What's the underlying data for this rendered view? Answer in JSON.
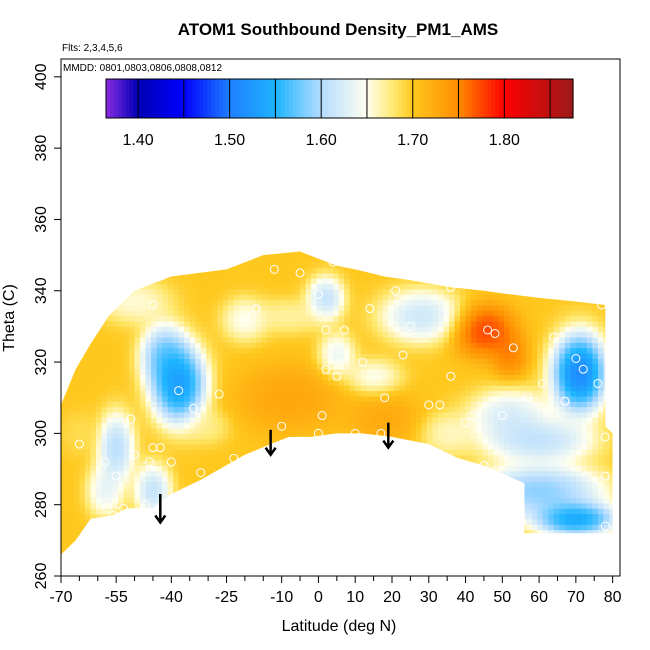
{
  "chart_data": {
    "type": "heatmap",
    "title": "ATOM1 Southbound Density_PM1_AMS",
    "notes": {
      "flights": "Flts: 2,3,4,5,6",
      "dates": "MMDD: 0801,0803,0806,0808,0812"
    },
    "xlabel": "Latitude (deg N)",
    "ylabel": "Theta (C)",
    "xlim": [
      -70,
      82
    ],
    "ylim": [
      260,
      405
    ],
    "x_ticks_major": [
      -70,
      -55,
      -40,
      -25,
      -10,
      0,
      10,
      20,
      30,
      40,
      50,
      60,
      70,
      80
    ],
    "x_tick_labels": [
      "-70",
      "-55",
      "-40",
      "-25",
      "-10",
      "0",
      "10",
      "20",
      "30",
      "40",
      "50",
      "60",
      "70",
      "80"
    ],
    "x_ticks_minor": [
      -65,
      -60,
      -50,
      -45,
      -35,
      -30,
      -20,
      -15,
      -5,
      5,
      15,
      25,
      35,
      45,
      55,
      65,
      75
    ],
    "y_ticks": [
      260,
      280,
      300,
      320,
      340,
      360,
      380,
      400
    ],
    "y_tick_labels": [
      "260",
      "280",
      "300",
      "320",
      "340",
      "360",
      "380",
      "400"
    ],
    "colorbar": {
      "range": [
        1.365,
        1.875
      ],
      "boundaries": [
        1.4,
        1.45,
        1.5,
        1.55,
        1.6,
        1.65,
        1.7,
        1.75,
        1.8,
        1.85
      ],
      "tick_values": [
        1.4,
        1.5,
        1.6,
        1.7,
        1.8
      ],
      "tick_labels": [
        "1.40",
        "1.50",
        "1.60",
        "1.70",
        "1.80"
      ],
      "color_stops": [
        {
          "v": 1.365,
          "c": "#8a2be2"
        },
        {
          "v": 1.4,
          "c": "#0000b4"
        },
        {
          "v": 1.45,
          "c": "#0000ff"
        },
        {
          "v": 1.5,
          "c": "#1f7fff"
        },
        {
          "v": 1.55,
          "c": "#1eb4ff"
        },
        {
          "v": 1.6,
          "c": "#b4dcff"
        },
        {
          "v": 1.65,
          "c": "#fffff0"
        },
        {
          "v": 1.68,
          "c": "#ffe76b"
        },
        {
          "v": 1.7,
          "c": "#ffc81e"
        },
        {
          "v": 1.75,
          "c": "#ff8c00"
        },
        {
          "v": 1.8,
          "c": "#ff0000"
        },
        {
          "v": 1.875,
          "c": "#9b1a1a"
        }
      ]
    },
    "field_base_density": 1.7,
    "field_blobs": [
      {
        "lat": 71,
        "theta": 317,
        "density": 1.4,
        "r_lat": 6,
        "r_theta": 9
      },
      {
        "lat": 45,
        "theta": 329,
        "density": 1.82,
        "r_lat": 7,
        "r_theta": 6
      },
      {
        "lat": 52,
        "theta": 322,
        "density": 1.78,
        "r_lat": 4,
        "r_theta": 5
      },
      {
        "lat": -38,
        "theta": 314,
        "density": 1.43,
        "r_lat": 6,
        "r_theta": 9
      },
      {
        "lat": -42,
        "theta": 322,
        "density": 1.52,
        "r_lat": 5,
        "r_theta": 7
      },
      {
        "lat": 60,
        "theta": 284,
        "density": 1.52,
        "r_lat": 14,
        "r_theta": 6
      },
      {
        "lat": 70,
        "theta": 276,
        "density": 1.45,
        "r_lat": 9,
        "r_theta": 4
      },
      {
        "lat": 52,
        "theta": 305,
        "density": 1.58,
        "r_lat": 9,
        "r_theta": 6
      },
      {
        "lat": 60,
        "theta": 298,
        "density": 1.56,
        "r_lat": 12,
        "r_theta": 5
      },
      {
        "lat": 28,
        "theta": 333,
        "density": 1.57,
        "r_lat": 9,
        "r_theta": 6
      },
      {
        "lat": 15,
        "theta": 316,
        "density": 1.62,
        "r_lat": 6,
        "r_theta": 4
      },
      {
        "lat": 5,
        "theta": 322,
        "density": 1.6,
        "r_lat": 4,
        "r_theta": 5
      },
      {
        "lat": 2,
        "theta": 338,
        "density": 1.56,
        "r_lat": 4,
        "r_theta": 5
      },
      {
        "lat": -8,
        "theta": 333,
        "density": 1.65,
        "r_lat": 8,
        "r_theta": 4
      },
      {
        "lat": -55,
        "theta": 296,
        "density": 1.55,
        "r_lat": 4,
        "r_theta": 8
      },
      {
        "lat": -58,
        "theta": 284,
        "density": 1.6,
        "r_lat": 4,
        "r_theta": 6
      },
      {
        "lat": -45,
        "theta": 284,
        "density": 1.56,
        "r_lat": 4,
        "r_theta": 6
      },
      {
        "lat": -50,
        "theta": 337,
        "density": 1.63,
        "r_lat": 8,
        "r_theta": 5
      },
      {
        "lat": -20,
        "theta": 332,
        "density": 1.62,
        "r_lat": 5,
        "r_theta": 5
      },
      {
        "lat": -8,
        "theta": 310,
        "density": 1.745,
        "r_lat": 12,
        "r_theta": 8
      },
      {
        "lat": 18,
        "theta": 304,
        "density": 1.74,
        "r_lat": 8,
        "r_theta": 6
      },
      {
        "lat": -30,
        "theta": 302,
        "density": 1.66,
        "r_lat": 5,
        "r_theta": 4
      },
      {
        "lat": 35,
        "theta": 300,
        "density": 1.64,
        "r_lat": 6,
        "r_theta": 5
      },
      {
        "lat": -65,
        "theta": 300,
        "density": 1.68,
        "r_lat": 4,
        "r_theta": 5
      }
    ],
    "domain_polygon": [
      [
        -70,
        266
      ],
      [
        -66,
        270
      ],
      [
        -62,
        276
      ],
      [
        -56,
        277
      ],
      [
        -52,
        279
      ],
      [
        -45,
        279
      ],
      [
        -40,
        283
      ],
      [
        -32,
        287
      ],
      [
        -20,
        294
      ],
      [
        -13,
        297
      ],
      [
        -8,
        299
      ],
      [
        -2,
        299
      ],
      [
        5,
        300
      ],
      [
        12,
        300
      ],
      [
        20,
        299
      ],
      [
        30,
        297
      ],
      [
        38,
        293
      ],
      [
        45,
        291
      ],
      [
        56,
        286
      ],
      [
        56,
        272
      ],
      [
        80,
        272
      ],
      [
        80,
        300
      ],
      [
        78,
        302
      ],
      [
        78,
        336
      ],
      [
        70,
        337
      ],
      [
        60,
        338
      ],
      [
        52,
        339
      ],
      [
        45,
        340
      ],
      [
        36,
        341
      ],
      [
        25,
        343
      ],
      [
        18,
        344
      ],
      [
        10,
        346
      ],
      [
        5,
        347
      ],
      [
        -5,
        351
      ],
      [
        -15,
        350
      ],
      [
        -25,
        346
      ],
      [
        -40,
        344
      ],
      [
        -50,
        340
      ],
      [
        -57,
        333
      ],
      [
        -62,
        325
      ],
      [
        -66,
        318
      ],
      [
        -70,
        308
      ],
      [
        -71,
        290
      ]
    ],
    "observations": [
      [
        -65,
        297
      ],
      [
        -58,
        292
      ],
      [
        -56,
        277
      ],
      [
        -55,
        288
      ],
      [
        -53,
        279
      ],
      [
        -51,
        304
      ],
      [
        -50,
        294
      ],
      [
        -47,
        280
      ],
      [
        -46,
        292
      ],
      [
        -45,
        296
      ],
      [
        -43,
        296
      ],
      [
        -40,
        292
      ],
      [
        -38,
        312
      ],
      [
        -34,
        307
      ],
      [
        -32,
        289
      ],
      [
        -27,
        311
      ],
      [
        -23,
        293
      ],
      [
        -17,
        335
      ],
      [
        -10,
        302
      ],
      [
        -5,
        345
      ],
      [
        0,
        339
      ],
      [
        0,
        300
      ],
      [
        1,
        305
      ],
      [
        2,
        318
      ],
      [
        2,
        329
      ],
      [
        5,
        316
      ],
      [
        7,
        329
      ],
      [
        10,
        300
      ],
      [
        12,
        320
      ],
      [
        14,
        335
      ],
      [
        17,
        300
      ],
      [
        18,
        310
      ],
      [
        21,
        340
      ],
      [
        23,
        322
      ],
      [
        25,
        330
      ],
      [
        30,
        308
      ],
      [
        33,
        308
      ],
      [
        36,
        316
      ],
      [
        40,
        303
      ],
      [
        42,
        305
      ],
      [
        45,
        291
      ],
      [
        46,
        329
      ],
      [
        48,
        328
      ],
      [
        50,
        305
      ],
      [
        53,
        324
      ],
      [
        57,
        310
      ],
      [
        61,
        314
      ],
      [
        64,
        327
      ],
      [
        67,
        309
      ],
      [
        70,
        321
      ],
      [
        72,
        318
      ],
      [
        76,
        314
      ],
      [
        77,
        336
      ],
      [
        78,
        299
      ],
      [
        78,
        288
      ],
      [
        78,
        274
      ],
      [
        -12,
        346
      ],
      [
        4,
        348
      ],
      [
        20,
        345
      ],
      [
        36,
        341
      ],
      [
        -45,
        336
      ]
    ],
    "arrows": [
      {
        "lat": -43,
        "theta_top": 283,
        "theta_tip": 275
      },
      {
        "lat": -13,
        "theta_top": 301,
        "theta_tip": 294
      },
      {
        "lat": 19,
        "theta_top": 303,
        "theta_tip": 296
      }
    ],
    "grid": false,
    "legend": "colorbar top"
  }
}
